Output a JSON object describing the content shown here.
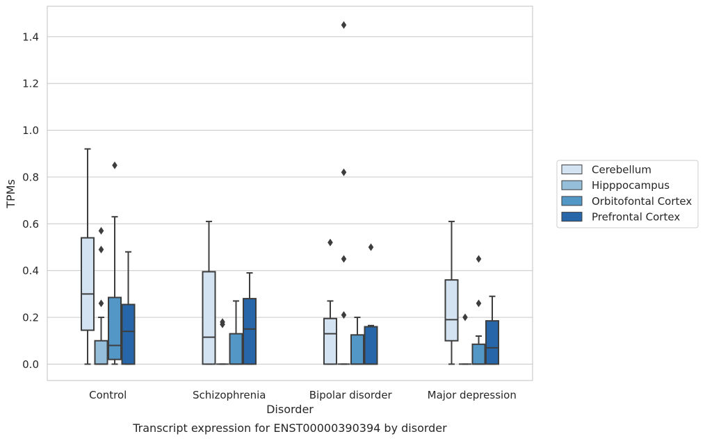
{
  "chart_data": {
    "type": "box",
    "caption": "Transcript expression for ENST00000390394 by disorder",
    "xlabel": "Disorder",
    "ylabel": "TPMs",
    "ylim": [
      -0.07,
      1.53
    ],
    "yticks": [
      0.0,
      0.2,
      0.4,
      0.6,
      0.8,
      1.0,
      1.2,
      1.4
    ],
    "ytick_labels": [
      "0.0",
      "0.2",
      "0.4",
      "0.6",
      "0.8",
      "1.0",
      "1.2",
      "1.4"
    ],
    "grid": "horizontal",
    "legend_position": "right",
    "categories": [
      "Control",
      "Schizophrenia",
      "Bipolar disorder",
      "Major depression"
    ],
    "series": [
      {
        "name": "Cerebellum",
        "color": "#d3e3f2",
        "boxes": [
          {
            "whisker_low": 0.0,
            "q1": 0.145,
            "median": 0.3,
            "q3": 0.54,
            "whisker_high": 0.92,
            "outliers": []
          },
          {
            "whisker_low": 0.0,
            "q1": 0.0,
            "median": 0.115,
            "q3": 0.395,
            "whisker_high": 0.61,
            "outliers": []
          },
          {
            "whisker_low": 0.0,
            "q1": 0.0,
            "median": 0.13,
            "q3": 0.195,
            "whisker_high": 0.27,
            "outliers": [
              0.52
            ]
          },
          {
            "whisker_low": 0.0,
            "q1": 0.1,
            "median": 0.19,
            "q3": 0.36,
            "whisker_high": 0.61,
            "outliers": []
          }
        ]
      },
      {
        "name": "Hipppocampus",
        "color": "#94bed9",
        "boxes": [
          {
            "whisker_low": 0.0,
            "q1": 0.0,
            "median": 0.0,
            "q3": 0.1,
            "whisker_high": 0.2,
            "outliers": [
              0.26,
              0.49,
              0.57
            ]
          },
          {
            "whisker_low": 0.0,
            "q1": 0.0,
            "median": 0.0,
            "q3": 0.0,
            "whisker_high": 0.0,
            "outliers": [
              0.17,
              0.18
            ]
          },
          {
            "whisker_low": 0.0,
            "q1": 0.0,
            "median": 0.0,
            "q3": 0.0,
            "whisker_high": 0.0,
            "outliers": [
              0.21,
              0.45,
              0.82,
              1.45
            ]
          },
          {
            "whisker_low": 0.0,
            "q1": 0.0,
            "median": 0.0,
            "q3": 0.0,
            "whisker_high": 0.0,
            "outliers": [
              0.2
            ]
          }
        ]
      },
      {
        "name": "Orbitofontal Cortex",
        "color": "#5297c6",
        "boxes": [
          {
            "whisker_low": 0.0,
            "q1": 0.02,
            "median": 0.08,
            "q3": 0.285,
            "whisker_high": 0.63,
            "outliers": [
              0.85
            ]
          },
          {
            "whisker_low": 0.0,
            "q1": 0.0,
            "median": 0.0,
            "q3": 0.13,
            "whisker_high": 0.27,
            "outliers": []
          },
          {
            "whisker_low": 0.0,
            "q1": 0.0,
            "median": 0.0,
            "q3": 0.125,
            "whisker_high": 0.2,
            "outliers": []
          },
          {
            "whisker_low": 0.0,
            "q1": 0.0,
            "median": 0.0,
            "q3": 0.085,
            "whisker_high": 0.12,
            "outliers": [
              0.26,
              0.45
            ]
          }
        ]
      },
      {
        "name": "Prefrontal Cortex",
        "color": "#2766a8",
        "boxes": [
          {
            "whisker_low": 0.0,
            "q1": 0.0,
            "median": 0.14,
            "q3": 0.255,
            "whisker_high": 0.48,
            "outliers": []
          },
          {
            "whisker_low": 0.0,
            "q1": 0.0,
            "median": 0.15,
            "q3": 0.28,
            "whisker_high": 0.39,
            "outliers": []
          },
          {
            "whisker_low": 0.0,
            "q1": 0.0,
            "median": 0.0,
            "q3": 0.16,
            "whisker_high": 0.165,
            "outliers": [
              0.5
            ]
          },
          {
            "whisker_low": 0.0,
            "q1": 0.0,
            "median": 0.07,
            "q3": 0.185,
            "whisker_high": 0.29,
            "outliers": []
          }
        ]
      }
    ]
  },
  "style": {
    "grid_color": "#cccccc",
    "spine_color": "#cccccc",
    "line_color": "#3d3d3d"
  }
}
